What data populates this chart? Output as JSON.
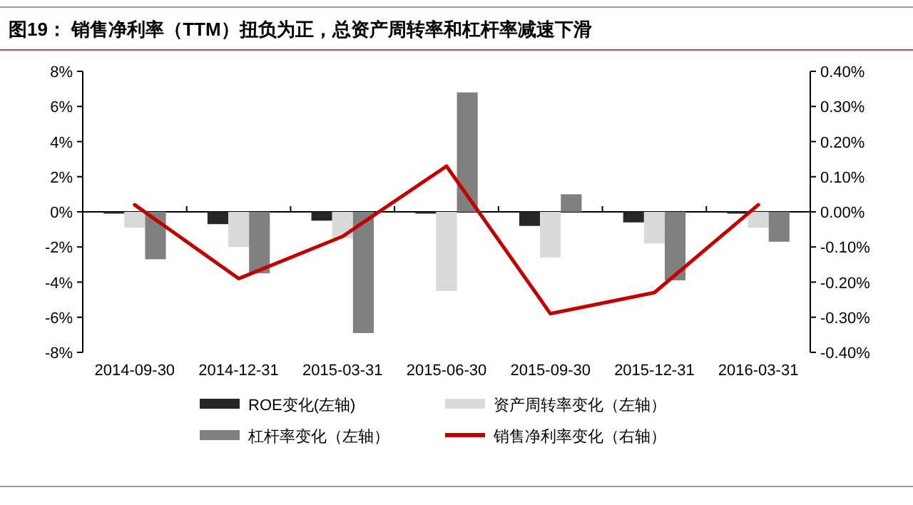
{
  "chart_data": {
    "type": "bar",
    "title": "图19：  销售净利率（TTM）扭负为正，总资产周转率和杠杆率减速下滑",
    "categories": [
      "2014-09-30",
      "2014-12-31",
      "2015-03-31",
      "2015-06-30",
      "2015-09-30",
      "2015-12-31",
      "2016-03-31"
    ],
    "series": [
      {
        "name": "ROE变化(左轴)",
        "color": "#262626",
        "values": [
          -0.1,
          -0.7,
          -0.5,
          -0.1,
          -0.8,
          -0.6,
          -0.1
        ]
      },
      {
        "name": "资产周转率变化（左轴）",
        "color": "#d9d9d9",
        "values": [
          -0.9,
          -2.0,
          -1.5,
          -4.5,
          -2.6,
          -1.8,
          -0.9
        ]
      },
      {
        "name": "杠杆率变化（左轴）",
        "color": "#808080",
        "values": [
          -2.7,
          -3.5,
          -6.9,
          6.8,
          1.0,
          -3.9,
          -1.7
        ]
      },
      {
        "name": "销售净利率变化（右轴）",
        "color": "#c00000",
        "type": "line",
        "axis": "y2",
        "values": [
          0.02,
          -0.19,
          -0.07,
          0.13,
          -0.29,
          -0.23,
          0.02
        ]
      }
    ],
    "ylim": [
      -8,
      8
    ],
    "yticks": [
      {
        "value": -8,
        "label": "-8%"
      },
      {
        "value": -6,
        "label": "-6%"
      },
      {
        "value": -4,
        "label": "-4%"
      },
      {
        "value": -2,
        "label": "-2%"
      },
      {
        "value": 0,
        "label": "0%"
      },
      {
        "value": 2,
        "label": "2%"
      },
      {
        "value": 4,
        "label": "4%"
      },
      {
        "value": 6,
        "label": "6%"
      },
      {
        "value": 8,
        "label": "8%"
      }
    ],
    "y2lim": [
      -0.4,
      0.4
    ],
    "y2ticks": [
      {
        "value": -0.4,
        "label": "-0.40%"
      },
      {
        "value": -0.3,
        "label": "-0.30%"
      },
      {
        "value": -0.2,
        "label": "-0.20%"
      },
      {
        "value": -0.1,
        "label": "-0.10%"
      },
      {
        "value": 0,
        "label": "0.00%"
      },
      {
        "value": 0.1,
        "label": "0.10%"
      },
      {
        "value": 0.2,
        "label": "0.20%"
      },
      {
        "value": 0.3,
        "label": "0.30%"
      },
      {
        "value": 0.4,
        "label": "0.40%"
      }
    ],
    "legend": "bottom",
    "marker": "none",
    "line_style": "solid"
  }
}
